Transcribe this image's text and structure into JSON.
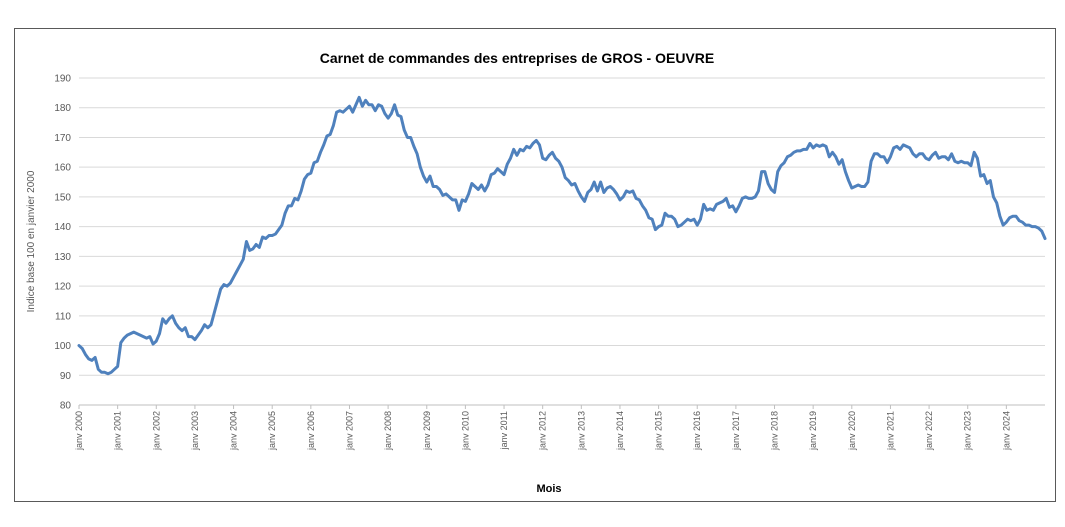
{
  "chart_data": {
    "type": "line",
    "title": "Carnet de commandes des entreprises de GROS - OEUVRE",
    "xlabel": "Mois",
    "ylabel": "Indice base 100 en janvier 2000",
    "ylim": [
      80,
      190
    ],
    "yticks": [
      80,
      90,
      100,
      110,
      120,
      130,
      140,
      150,
      160,
      170,
      180,
      190
    ],
    "grid": true,
    "xtick_labels": [
      "janv 2000",
      "janv 2001",
      "janv 2002",
      "janv 2003",
      "janv 2004",
      "janv 2005",
      "janv 2006",
      "janv 2007",
      "janv 2008",
      "janv 2009",
      "janv 2010",
      "janv 2011",
      "janv 2012",
      "janv 2013",
      "janv 2014",
      "janv 2015",
      "janv 2016",
      "janv 2017",
      "janv 2018",
      "janv 2019",
      "janv 2020",
      "janv 2021",
      "janv 2022",
      "janv 2023",
      "janv 2024"
    ],
    "series_color": "#4f81bd",
    "series": [
      {
        "values": [
          100,
          99,
          97,
          95.5,
          95,
          96,
          92,
          91,
          91,
          90.5,
          91,
          92,
          93,
          101,
          102.5,
          103.5,
          104,
          104.5,
          104,
          103.5,
          103,
          102.5,
          103,
          100.5,
          101.5,
          104,
          109,
          107.5,
          109,
          110,
          107.5,
          106,
          105,
          106,
          103,
          103,
          102,
          103.5,
          105,
          107,
          106,
          107,
          111,
          115,
          119,
          120.5,
          120,
          121,
          123,
          125,
          127,
          129,
          135,
          132,
          132.5,
          134,
          133,
          136.5,
          136,
          137,
          137,
          137.5,
          139,
          140.5,
          144.5,
          147,
          147,
          149.5,
          149,
          152,
          156,
          157.5,
          158,
          161.5,
          162,
          165,
          167.5,
          170.5,
          171,
          174,
          178.5,
          179,
          178.5,
          179.5,
          180.5,
          178.5,
          181,
          183.5,
          180.5,
          182.5,
          181,
          181,
          179,
          181,
          180.5,
          178,
          176.5,
          178,
          181,
          177.5,
          177,
          172.5,
          170,
          170,
          167,
          164.5,
          160,
          157,
          155,
          157,
          153.5,
          153.5,
          152.5,
          150.5,
          151,
          150,
          149,
          149,
          145.5,
          149,
          148.5,
          151,
          154.5,
          153.5,
          152.5,
          154,
          152,
          154,
          157.5,
          158,
          159.5,
          158.5,
          157.5,
          161,
          163,
          166,
          164,
          166,
          165.5,
          167,
          166.5,
          168,
          169,
          167.5,
          163,
          162.5,
          164,
          165,
          163,
          162,
          160,
          156.5,
          155.5,
          154,
          154.5,
          152,
          150,
          148.5,
          151.5,
          152.5,
          155,
          152,
          155,
          151.5,
          153,
          153.5,
          152.5,
          151,
          149,
          150,
          152,
          151.5,
          152,
          149.5,
          149,
          147,
          145.5,
          143,
          142.5,
          139,
          140,
          140.5,
          144.5,
          143.5,
          143.5,
          142.5,
          140,
          140.5,
          141.5,
          142.5,
          142,
          142.5,
          140.5,
          142.5,
          147.5,
          145.5,
          146,
          145.5,
          147.5,
          148,
          148.5,
          149.5,
          146.5,
          147,
          145,
          147,
          149.5,
          150,
          149.5,
          149.5,
          150,
          152,
          158.5,
          158.5,
          154.5,
          152.5,
          151.5,
          158.5,
          160.5,
          161.5,
          163.5,
          164,
          165,
          165.5,
          165.5,
          166,
          166,
          168,
          166.5,
          167.5,
          167,
          167.5,
          167,
          163.5,
          165,
          163.5,
          161,
          162.5,
          158.5,
          155.5,
          153,
          153.5,
          154,
          153.5,
          153.5,
          155,
          162,
          164.5,
          164.5,
          163.5,
          163.5,
          161.5,
          163.5,
          166.5,
          167,
          166,
          167.5,
          167,
          166.5,
          164.5,
          163.5,
          164.5,
          164.5,
          163,
          162.5,
          164,
          165,
          163,
          163.5,
          163.5,
          162.5,
          164.5,
          162,
          161.5,
          162,
          161.5,
          161.5,
          160.5,
          165,
          163,
          157,
          157.5,
          154.5,
          155.5,
          150,
          148,
          143.5,
          140.5,
          141.5,
          143,
          143.5,
          143.5,
          142,
          141.5,
          140.5,
          140.5,
          140,
          140,
          139.5,
          138.5,
          136
        ]
      }
    ]
  }
}
